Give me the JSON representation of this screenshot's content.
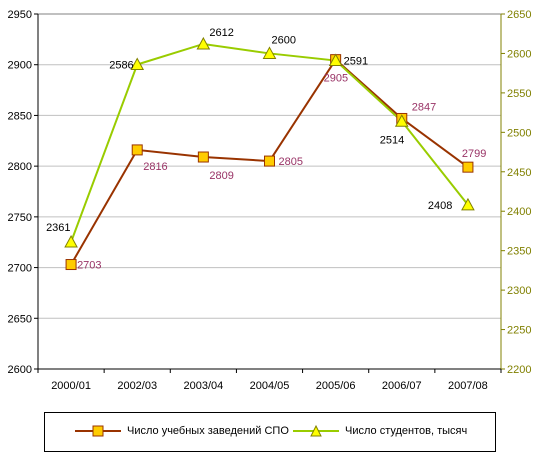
{
  "chart_data": {
    "type": "line",
    "categories": [
      "2000/01",
      "2002/03",
      "2003/04",
      "2004/05",
      "2005/06",
      "2006/07",
      "2007/08"
    ],
    "series": [
      {
        "name": "Число учебных заведений СПО",
        "axis": "left",
        "values": [
          2703,
          2816,
          2809,
          2805,
          2905,
          2847,
          2799
        ],
        "labels": [
          "2703",
          "2816",
          "2809",
          "2805",
          "2905",
          "2847",
          "2799"
        ],
        "line_color": "#993300",
        "marker": "square",
        "marker_fill": "#FFCC00",
        "label_color": "#993366"
      },
      {
        "name": "Число студентов, тысяч",
        "axis": "right",
        "values": [
          2361,
          2586,
          2612,
          2600,
          2591,
          2514,
          2408
        ],
        "labels": [
          "2361",
          "2586",
          "2612",
          "2600",
          "2591",
          "2514",
          "2408"
        ],
        "line_color": "#99CC00",
        "marker": "triangle",
        "marker_fill": "#FFFF00",
        "label_color": "#000000"
      }
    ],
    "y_left": {
      "min": 2600,
      "max": 2950,
      "step": 50,
      "ticks": [
        "2600",
        "2650",
        "2700",
        "2750",
        "2800",
        "2850",
        "2900",
        "2950"
      ]
    },
    "y_right": {
      "min": 2200,
      "max": 2650,
      "step": 50,
      "ticks": [
        "2200",
        "2250",
        "2300",
        "2350",
        "2400",
        "2450",
        "2500",
        "2550",
        "2600",
        "2650"
      ],
      "tick_color": "#808000"
    },
    "grid": true,
    "legend_position": "bottom"
  }
}
